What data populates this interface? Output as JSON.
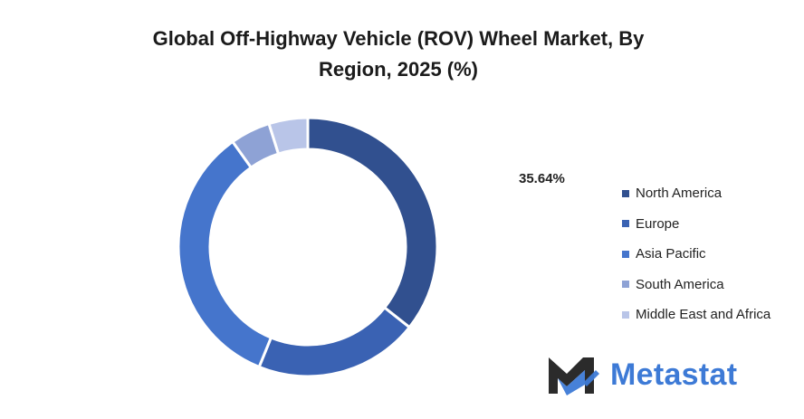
{
  "title_line1": "Global Off-Highway Vehicle (ROV) Wheel Market, By",
  "title_line2": "Region, 2025 (%)",
  "chart_data": {
    "type": "pie",
    "title": "Global Off-Highway Vehicle (ROV) Wheel Market, By Region, 2025 (%)",
    "categories": [
      "North America",
      "Europe",
      "Asia Pacific",
      "South America",
      "Middle East and Africa"
    ],
    "values": [
      35.64,
      20.5,
      34.0,
      5.0,
      4.86
    ],
    "colors": [
      "#31508f",
      "#3a62b3",
      "#4575cc",
      "#8ea2d5",
      "#b9c5e8"
    ],
    "data_labels": [
      {
        "category": "North America",
        "text": "35.64%"
      }
    ],
    "donut": true,
    "legend": "right"
  },
  "logo": {
    "text": "Metastat"
  }
}
